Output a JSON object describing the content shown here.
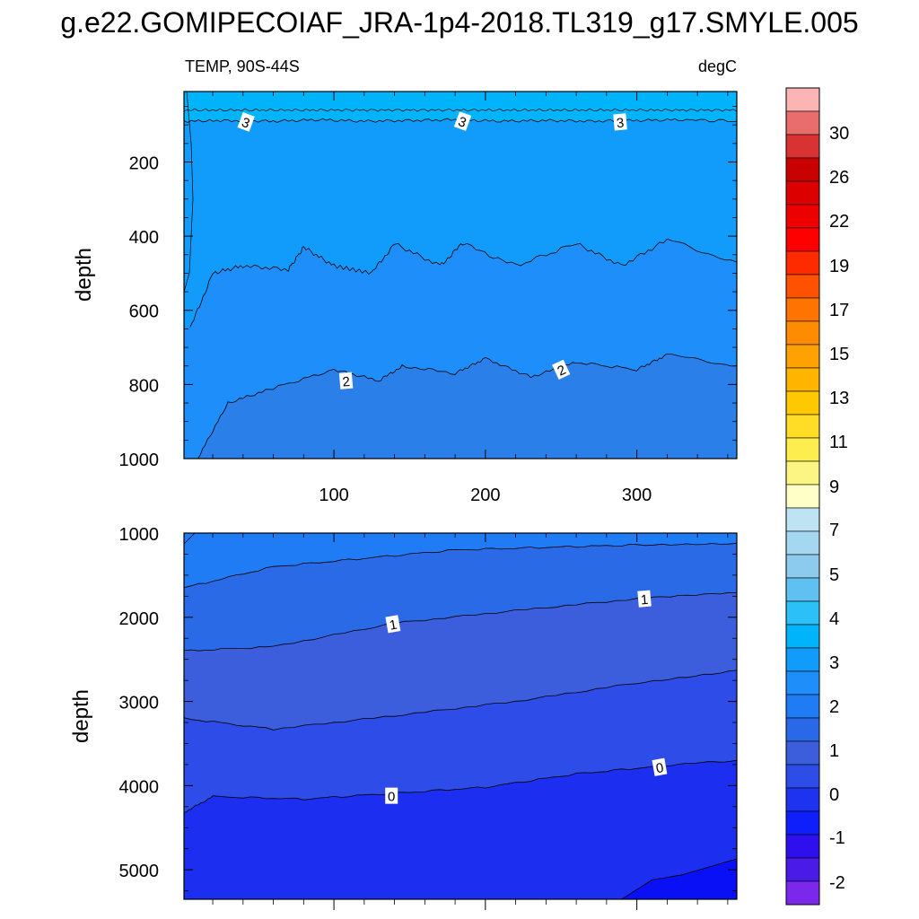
{
  "title": "g.e22.GOMIPECOIAF_JRA-1p4-2018.TL319_g17.SMYLE.005",
  "top_panel": {
    "left_label": "TEMP, 90S-44S",
    "right_label": "degC",
    "ylabel": "depth",
    "y_ticks": [
      "200",
      "400",
      "600",
      "800",
      "1000"
    ],
    "x_ticks": [
      "100",
      "200",
      "300"
    ],
    "contour_labels": [
      "3",
      "3",
      "3",
      "2",
      "2"
    ]
  },
  "bottom_panel": {
    "ylabel": "depth",
    "y_ticks": [
      "1000",
      "2000",
      "3000",
      "4000",
      "5000"
    ],
    "contour_labels": [
      "1",
      "1",
      "0",
      "0"
    ]
  },
  "colorbar": {
    "labels": [
      "30",
      "26",
      "22",
      "19",
      "17",
      "15",
      "13",
      "11",
      "9",
      "7",
      "5",
      "4",
      "3",
      "2",
      "1",
      "0",
      "-1",
      "-2"
    ],
    "colors": [
      "#fcb4b4",
      "#ea6d6d",
      "#d83232",
      "#c80000",
      "#dc0000",
      "#ef0000",
      "#fe0000",
      "#ff2b00",
      "#ff5200",
      "#ff7300",
      "#ff8c00",
      "#ffa100",
      "#ffb500",
      "#ffc900",
      "#ffdd26",
      "#fded4f",
      "#fdf583",
      "#ffffc8",
      "#bee4f3",
      "#a5d7f0",
      "#8ccbee",
      "#5fc1f2",
      "#2bc0f7",
      "#00b4fb",
      "#119cfc",
      "#1e8efb",
      "#1f7cf5",
      "#2968e6",
      "#3c5edd",
      "#2e4de8",
      "#1d33ef",
      "#0f1ffb",
      "#2e10ee",
      "#4a1ae6",
      "#7b28ec"
    ]
  },
  "chart_data": [
    {
      "type": "heatmap",
      "title": "TEMP, 90S-44S",
      "unit": "degC",
      "xlabel": "",
      "ylabel": "depth",
      "xlim": [
        1,
        366
      ],
      "ylim": [
        1000,
        10
      ],
      "x_ticks": [
        100,
        200,
        300
      ],
      "y_ticks": [
        200,
        400,
        600,
        800,
        1000
      ],
      "series": [
        {
          "name": "3 contour",
          "x": [
            1,
            30,
            60,
            90,
            120,
            150,
            180,
            210,
            240,
            270,
            300,
            330,
            366
          ],
          "y": [
            90,
            88,
            90,
            86,
            90,
            88,
            86,
            90,
            88,
            90,
            88,
            86,
            90
          ]
        },
        {
          "name": "2.5 contour",
          "x": [
            5,
            20,
            40,
            70,
            80,
            100,
            125,
            140,
            170,
            185,
            220,
            260,
            290,
            320,
            366
          ],
          "y": [
            650,
            500,
            480,
            490,
            430,
            480,
            500,
            420,
            480,
            420,
            480,
            420,
            480,
            410,
            470
          ]
        },
        {
          "name": "2 contour",
          "x": [
            10,
            30,
            60,
            100,
            130,
            145,
            180,
            200,
            230,
            260,
            300,
            320,
            366
          ],
          "y": [
            1000,
            850,
            810,
            760,
            790,
            750,
            770,
            730,
            780,
            740,
            760,
            720,
            750
          ]
        }
      ]
    },
    {
      "type": "heatmap",
      "title": "",
      "unit": "degC",
      "xlabel": "",
      "ylabel": "depth",
      "xlim": [
        1,
        366
      ],
      "ylim": [
        5350,
        1000
      ],
      "y_ticks": [
        1000,
        2000,
        3000,
        4000,
        5000
      ],
      "series": [
        {
          "name": "1.5 contour",
          "x": [
            1,
            60,
            120,
            180,
            240,
            300,
            366
          ],
          "y": [
            1650,
            1400,
            1300,
            1200,
            1170,
            1140,
            1120
          ]
        },
        {
          "name": "1 contour",
          "x": [
            1,
            60,
            140,
            220,
            300,
            366
          ],
          "y": [
            2400,
            2350,
            2070,
            1920,
            1780,
            1710
          ]
        },
        {
          "name": "0.5 contour",
          "x": [
            1,
            60,
            140,
            220,
            300,
            366
          ],
          "y": [
            3200,
            3330,
            3170,
            3000,
            2780,
            2630
          ]
        },
        {
          "name": "0 contour",
          "x": [
            1,
            20,
            80,
            140,
            200,
            260,
            320,
            366
          ],
          "y": [
            4320,
            4130,
            4160,
            4090,
            4020,
            3860,
            3760,
            3700
          ]
        },
        {
          "name": "-0.5 contour",
          "x": [
            290,
            310,
            330,
            366
          ],
          "y": [
            5350,
            5120,
            5060,
            4870
          ]
        }
      ]
    }
  ]
}
